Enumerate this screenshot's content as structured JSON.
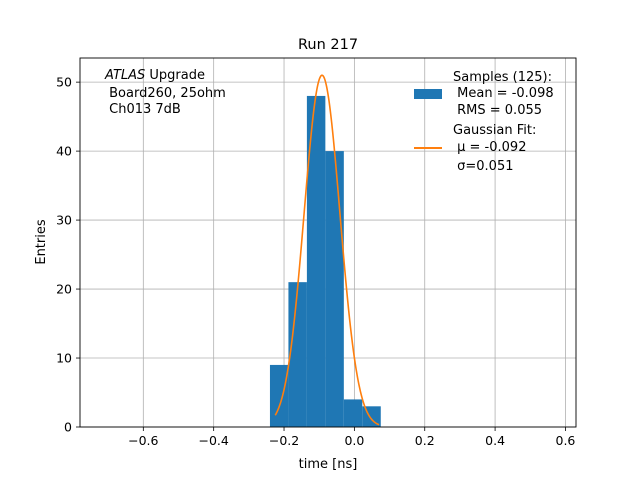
{
  "chart_data": {
    "type": "bar",
    "title": "Run 217",
    "xlabel": "time [ns]",
    "ylabel": "Entries",
    "xlim": [
      -0.78,
      0.63
    ],
    "ylim": [
      0,
      53.5
    ],
    "grid": true,
    "xticks": [
      -0.6,
      -0.4,
      -0.2,
      0.0,
      0.2,
      0.4,
      0.6
    ],
    "xtick_labels": [
      "−0.6",
      "−0.4",
      "−0.2",
      "0.0",
      "0.2",
      "0.4",
      "0.6"
    ],
    "yticks": [
      0,
      10,
      20,
      30,
      40,
      50
    ],
    "ytick_labels": [
      "0",
      "10",
      "20",
      "30",
      "40",
      "50"
    ],
    "histogram": {
      "bin_edges": [
        -0.24,
        -0.1875,
        -0.135,
        -0.0825,
        -0.03,
        0.0225,
        0.075
      ],
      "counts": [
        9,
        21,
        48,
        40,
        4,
        3
      ],
      "color": "#1f77b4"
    },
    "fit": {
      "mu": -0.092,
      "sigma": 0.051,
      "amplitude": 51,
      "x_range": [
        -0.225,
        0.07
      ],
      "color": "#ff7f0e"
    },
    "annotation": {
      "italic": "ATLAS",
      "first_rest": " Upgrade",
      "line2": " Board260, 25ohm",
      "line3": " Ch013 7dB"
    },
    "legend": {
      "placement": "top-right",
      "entries": [
        {
          "lines": [
            "Samples (125):",
            " Mean = -0.098",
            " RMS = 0.055"
          ],
          "color": "#1f77b4",
          "kind": "patch"
        },
        {
          "lines": [
            "Gaussian Fit:",
            " μ = -0.092",
            " σ=0.051"
          ],
          "color": "#ff7f0e",
          "kind": "line"
        }
      ]
    }
  }
}
